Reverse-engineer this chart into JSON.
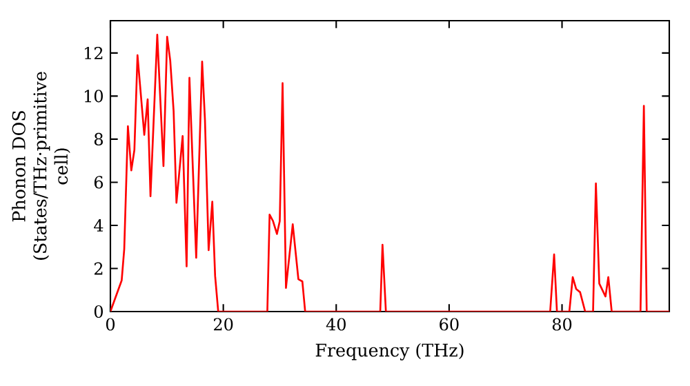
{
  "chart_data": {
    "type": "line",
    "xlabel": "Frequency (THz)",
    "ylabel": "Phonon DOS (States/THz·primitive cell)",
    "xlim": [
      0,
      99
    ],
    "ylim": [
      0,
      13.5
    ],
    "xticks": [
      0,
      20,
      40,
      60,
      80
    ],
    "yticks": [
      0,
      2,
      4,
      6,
      8,
      10,
      12
    ],
    "grid": false,
    "marker": "none",
    "line_style": "solid",
    "series": [
      {
        "color": "#ff0000",
        "x": [
          0,
          2.0,
          2.45,
          3.1,
          3.7,
          4.25,
          4.8,
          6.0,
          6.6,
          7.1,
          8.3,
          9.4,
          10.05,
          10.6,
          11.2,
          11.7,
          12.8,
          13.5,
          14.0,
          15.2,
          16.25,
          16.75,
          17.4,
          18.05,
          18.55,
          19.1,
          27.8,
          28.2,
          28.8,
          29.5,
          30.0,
          30.5,
          31.1,
          32.3,
          33.3,
          34.0,
          34.5,
          47.8,
          48.2,
          48.8,
          77.9,
          78.6,
          79.1,
          81.3,
          81.9,
          82.5,
          83.2,
          84.1,
          85.5,
          86.0,
          86.6,
          87.7,
          88.2,
          88.8,
          93.9,
          94.5,
          95.0,
          99
        ],
        "values": [
          0,
          1.45,
          2.9,
          8.6,
          6.55,
          7.5,
          11.9,
          8.2,
          9.85,
          5.35,
          12.85,
          6.75,
          12.75,
          11.65,
          9.3,
          5.05,
          8.15,
          2.1,
          10.85,
          2.5,
          11.6,
          8.9,
          2.85,
          5.1,
          1.65,
          0,
          0,
          4.5,
          4.2,
          3.6,
          4.2,
          10.6,
          1.1,
          4.05,
          1.5,
          1.4,
          0,
          0,
          3.1,
          0,
          0,
          2.65,
          0,
          0,
          1.6,
          1.05,
          0.9,
          0,
          0,
          5.95,
          1.3,
          0.7,
          1.6,
          0,
          0,
          9.55,
          0,
          0
        ]
      }
    ]
  }
}
